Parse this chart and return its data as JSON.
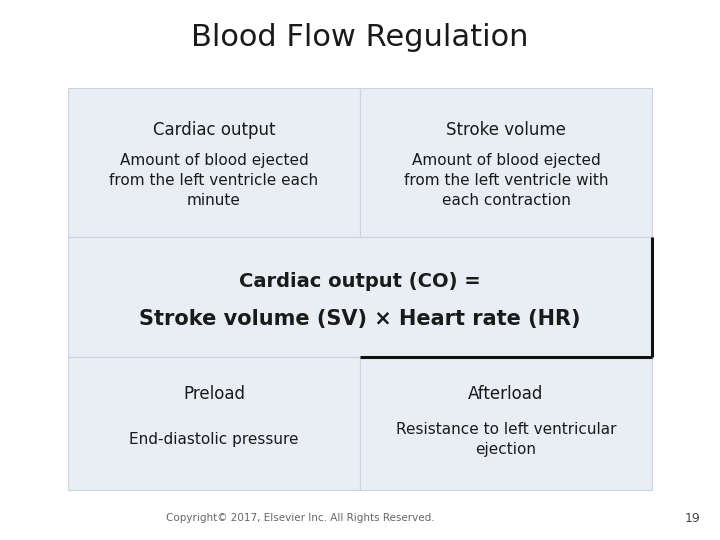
{
  "title": "Blood Flow Regulation",
  "title_fontsize": 22,
  "title_fontweight": "normal",
  "title_fontfamily": "sans-serif",
  "background_color": "#ffffff",
  "cell_bg": "#e8eef3",
  "cell_border": "#c8d4de",
  "text_color": "#1a1a1a",
  "copyright": "Copyright© 2017, Elsevier Inc. All Rights Reserved.",
  "page_number": "19",
  "rows": [
    {
      "type": "two_col",
      "cells": [
        {
          "header": "Cardiac output",
          "body": "Amount of blood ejected\nfrom the left ventricle each\nminute",
          "fontsize_header": 12,
          "fontsize_body": 11
        },
        {
          "header": "Stroke volume",
          "body": "Amount of blood ejected\nfrom the left ventricle with\neach contraction",
          "fontsize_header": 12,
          "fontsize_body": 11
        }
      ]
    },
    {
      "type": "full",
      "cell": {
        "line1": "Cardiac output (CO) =",
        "line2": "Stroke volume (SV) × Heart rate (HR)",
        "fontsize": 14,
        "bold": true,
        "border_right": true
      }
    },
    {
      "type": "two_col",
      "cells": [
        {
          "header": "Preload",
          "body": "End-diastolic pressure",
          "fontsize_header": 12,
          "fontsize_body": 11
        },
        {
          "header": "Afterload",
          "body": "Resistance to left ventricular\nejection",
          "fontsize_header": 12,
          "fontsize_body": 11
        }
      ]
    }
  ]
}
